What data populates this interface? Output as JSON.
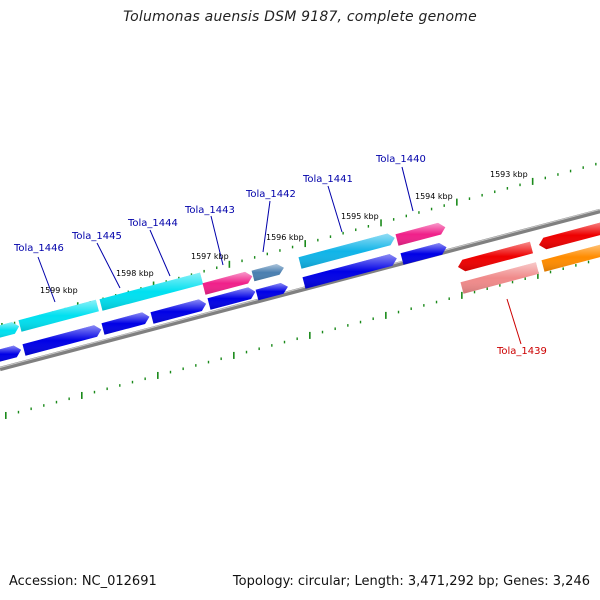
{
  "title": "Tolumonas auensis DSM 9187, complete genome",
  "footer": {
    "accession": "Accession: NC_012691",
    "summary": "Topology: circular; Length: 3,471,292 bp; Genes: 3,246"
  },
  "colors": {
    "backbone": "#808080",
    "tick": "#1a8a1a",
    "label_blue": "#0000aa",
    "label_red": "#cc0000",
    "cyan": "#00e0f0",
    "blue": "#0000e6",
    "magenta": "#f0208a",
    "steel": "#4a7fb0",
    "skyblue": "#10b4e8",
    "red": "#ee0000",
    "pink": "#f08a8a",
    "orange": "#ff8c00"
  },
  "kbp_labels": [
    "1599 kbp",
    "1598 kbp",
    "1597 kbp",
    "1596 kbp",
    "1595 kbp",
    "1594 kbp",
    "1593 kbp"
  ],
  "gene_labels": [
    {
      "text": "Tola_1446",
      "color": "label_blue"
    },
    {
      "text": "Tola_1445",
      "color": "label_blue"
    },
    {
      "text": "Tola_1444",
      "color": "label_blue"
    },
    {
      "text": "Tola_1443",
      "color": "label_blue"
    },
    {
      "text": "Tola_1442",
      "color": "label_blue"
    },
    {
      "text": "Tola_1441",
      "color": "label_blue"
    },
    {
      "text": "Tola_1440",
      "color": "label_blue"
    },
    {
      "text": "Tola_1439",
      "color": "label_red"
    }
  ]
}
